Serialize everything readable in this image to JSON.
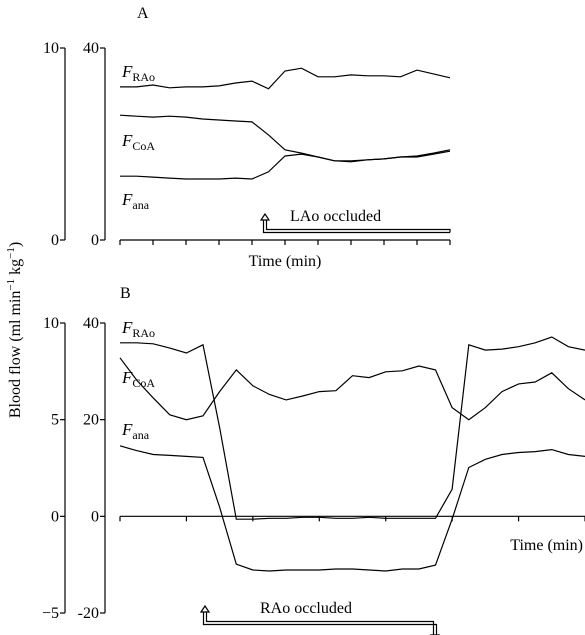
{
  "ylabel": "Blood flow (ml min−1 kg−1)",
  "chart_data": [
    {
      "type": "line",
      "label": "A",
      "xlabel": "Time (min)",
      "annotation": "LAo occluded",
      "xlim": [
        0,
        10
      ],
      "xticks": [
        0,
        1,
        2,
        3,
        4,
        5,
        6,
        7,
        8,
        9,
        10
      ],
      "ylim": [
        0,
        40
      ],
      "yticks": [
        0,
        40
      ],
      "y2lim": [
        0,
        10
      ],
      "y2ticks": [
        0,
        10
      ],
      "x": [
        0,
        0.5,
        1,
        1.5,
        2,
        2.5,
        3,
        3.5,
        4,
        4.5,
        5,
        5.5,
        6,
        6.5,
        7,
        7.5,
        8,
        8.5,
        9,
        9.5,
        10
      ],
      "series": [
        {
          "name": "FRAo",
          "color": "#000000",
          "values": [
            31.9,
            31.9,
            32.3,
            31.7,
            31.9,
            31.9,
            32.1,
            32.7,
            33.1,
            31.5,
            35.2,
            35.8,
            34.0,
            34.0,
            34.4,
            34.2,
            34.2,
            34.0,
            35.4,
            34.6,
            33.8
          ]
        },
        {
          "name": "FCoA",
          "color": "#000000",
          "values": [
            26.0,
            25.8,
            25.6,
            25.8,
            25.6,
            25.2,
            25.0,
            24.8,
            24.6,
            21.9,
            18.8,
            18.1,
            17.3,
            16.5,
            16.5,
            16.7,
            16.9,
            17.3,
            17.3,
            17.9,
            18.5
          ]
        },
        {
          "name": "Fana",
          "color": "#000000",
          "values": [
            13.3,
            13.3,
            13.1,
            12.9,
            12.7,
            12.7,
            12.7,
            12.9,
            12.7,
            14.2,
            17.5,
            17.9,
            17.3,
            16.5,
            16.3,
            16.7,
            16.9,
            17.3,
            17.5,
            18.1,
            18.8
          ]
        }
      ]
    },
    {
      "type": "line",
      "label": "B",
      "xlabel": "Time (min)",
      "annotation": "RAo occluded",
      "xlim": [
        0,
        14
      ],
      "xticks": [
        0,
        2,
        4,
        6,
        8,
        10,
        12,
        14
      ],
      "ylim": [
        -20,
        40
      ],
      "yticks": [
        -20,
        0,
        20,
        40
      ],
      "y2lim": [
        -5,
        10
      ],
      "y2ticks": [
        {
          "value": -5,
          "label": "−5"
        },
        0,
        5,
        10
      ],
      "x": [
        0,
        0.5,
        1,
        1.5,
        2,
        2.5,
        3,
        3.5,
        4,
        4.5,
        5,
        5.5,
        6,
        6.5,
        7,
        7.5,
        8,
        8.5,
        9,
        9.5,
        10,
        10.5,
        11,
        11.5,
        12,
        12.5,
        13,
        13.5,
        14
      ],
      "series": [
        {
          "name": "FRAo",
          "color": "#000000",
          "values": [
            35.9,
            35.9,
            35.7,
            34.8,
            33.8,
            35.5,
            18.4,
            -0.6,
            -0.6,
            -0.4,
            -0.4,
            -0.2,
            -0.2,
            -0.4,
            -0.4,
            -0.2,
            -0.4,
            -0.4,
            -0.4,
            -0.4,
            5.6,
            35.5,
            34.4,
            34.6,
            35.1,
            35.9,
            37.1,
            35.1,
            34.4
          ]
        },
        {
          "name": "FCoA",
          "color": "#000000",
          "values": [
            32.8,
            28.2,
            24.5,
            21.0,
            20.0,
            20.8,
            25.8,
            30.3,
            27.0,
            25.2,
            24.1,
            24.9,
            25.8,
            26.0,
            29.1,
            28.7,
            29.9,
            30.1,
            31.1,
            30.3,
            22.5,
            20.0,
            22.5,
            25.8,
            27.4,
            27.8,
            29.7,
            26.4,
            24.1
          ]
        },
        {
          "name": "Fana",
          "color": "#000000",
          "values": [
            14.6,
            13.6,
            12.8,
            12.6,
            12.4,
            12.2,
            1.9,
            -9.9,
            -11.1,
            -11.3,
            -11.1,
            -11.1,
            -11.1,
            -10.9,
            -10.9,
            -11.1,
            -11.3,
            -10.9,
            -10.9,
            -10.1,
            -0.6,
            10.1,
            11.8,
            12.8,
            13.2,
            13.4,
            13.8,
            12.8,
            12.4
          ]
        }
      ]
    }
  ]
}
